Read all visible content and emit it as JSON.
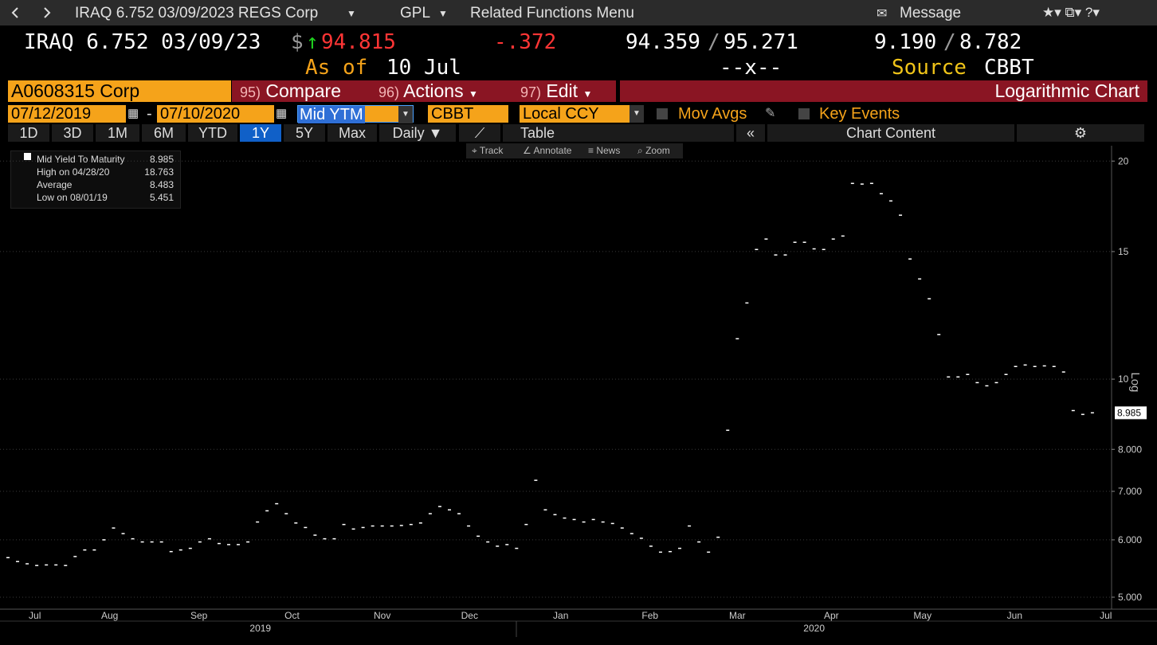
{
  "toolbar": {
    "security": "IRAQ 6.752 03/09/2023 REGS Corp",
    "function": "GPL",
    "menu": "Related Functions Menu",
    "message": "Message"
  },
  "quote": {
    "name": "IRAQ 6.752 03/09/23",
    "currency": "$",
    "price": "94.815",
    "change": "-.372",
    "bid": "94.359",
    "separator": "/",
    "ask": "95.271",
    "bid_yield": "9.190",
    "ask_yield": "8.782",
    "as_of_label": "As of",
    "as_of_date": "10 Jul",
    "size": "--x--",
    "source_label": "Source",
    "source": "CBBT"
  },
  "function_bar": {
    "ticker": "A0608315 Corp",
    "compare_num": "95)",
    "compare": "Compare",
    "actions_num": "96)",
    "actions": "Actions",
    "edit_num": "97)",
    "edit": "Edit",
    "chart_title": "Logarithmic Chart"
  },
  "date_bar": {
    "start": "07/12/2019",
    "dash": "-",
    "end": "07/10/2020",
    "field": "Mid YTM",
    "source": "CBBT",
    "currency": "Local CCY",
    "mov_avgs": "Mov Avgs",
    "key_events": "Key Events"
  },
  "period_bar": {
    "periods": [
      "1D",
      "3D",
      "1M",
      "6M",
      "YTD",
      "1Y",
      "5Y",
      "Max"
    ],
    "frequency": "Daily",
    "table": "Table",
    "chart_content": "Chart Content"
  },
  "chart_tools": [
    "Track",
    "Annotate",
    "News",
    "Zoom"
  ],
  "legend": {
    "stats": [
      {
        "label": "High on 04/28/20",
        "value": "18.763"
      },
      {
        "label": "Average",
        "value": "8.483"
      },
      {
        "label": "Low on 08/01/19",
        "value": "5.451"
      }
    ]
  },
  "chart_data": {
    "type": "line",
    "y_scale": "log",
    "y_axis_label": "Log",
    "series": [
      {
        "name": "Mid Yield To Maturity",
        "color": "#ffffff",
        "values": [
          5.67,
          5.6,
          5.56,
          5.53,
          5.54,
          5.54,
          5.53,
          5.69,
          5.81,
          5.81,
          6.0,
          6.23,
          6.12,
          6.02,
          5.96,
          5.96,
          5.96,
          5.78,
          5.81,
          5.84,
          5.96,
          6.02,
          5.93,
          5.91,
          5.91,
          5.96,
          6.35,
          6.58,
          6.73,
          6.52,
          6.33,
          6.24,
          6.09,
          6.02,
          6.02,
          6.3,
          6.21,
          6.24,
          6.27,
          6.27,
          6.27,
          6.28,
          6.3,
          6.33,
          6.52,
          6.67,
          6.6,
          6.52,
          6.27,
          6.07,
          5.96,
          5.88,
          5.91,
          5.84,
          6.3,
          7.25,
          6.6,
          6.5,
          6.43,
          6.4,
          6.35,
          6.4,
          6.35,
          6.32,
          6.23,
          6.12,
          6.03,
          5.88,
          5.77,
          5.78,
          5.84,
          6.27,
          5.96,
          5.77,
          6.05,
          8.5,
          11.37,
          12.74,
          15.1,
          15.61,
          14.84,
          14.84,
          15.45,
          15.45,
          15.13,
          15.1,
          15.61,
          15.76,
          18.63,
          18.59,
          18.63,
          18.03,
          17.62,
          16.84,
          14.65,
          13.75,
          12.91,
          11.52,
          10.07,
          10.07,
          10.15,
          9.89,
          9.79,
          9.89,
          10.15,
          10.41,
          10.46,
          10.41,
          10.43,
          10.41,
          10.23,
          9.05,
          8.94,
          8.985
        ]
      }
    ],
    "ylim": [
      4.85,
      21
    ],
    "yticks": [
      {
        "value": 5,
        "label": "5.000"
      },
      {
        "value": 6,
        "label": "6.000"
      },
      {
        "value": 7,
        "label": "7.000"
      },
      {
        "value": 8,
        "label": "8.000"
      },
      10,
      15,
      20
    ],
    "xlim": [
      0,
      115
    ],
    "xticks": [
      {
        "value": 2.8,
        "label": "Jul"
      },
      {
        "value": 10.6,
        "label": "Aug"
      },
      {
        "value": 19.9,
        "label": "Sep"
      },
      {
        "value": 29.6,
        "label": "Oct"
      },
      {
        "value": 39,
        "label": "Nov"
      },
      {
        "value": 48.1,
        "label": "Dec"
      },
      {
        "value": 57.6,
        "label": "Jan"
      },
      {
        "value": 66.9,
        "label": "Feb"
      },
      {
        "value": 76,
        "label": "Mar"
      },
      {
        "value": 85.8,
        "label": "Apr"
      },
      {
        "value": 95.3,
        "label": "May"
      },
      {
        "value": 104.9,
        "label": "Jun"
      },
      {
        "value": 114.4,
        "label": "Jul"
      }
    ],
    "years": [
      {
        "value": 26.3,
        "label": "2019"
      },
      {
        "value": 84,
        "label": "2020"
      }
    ],
    "grid": true
  }
}
